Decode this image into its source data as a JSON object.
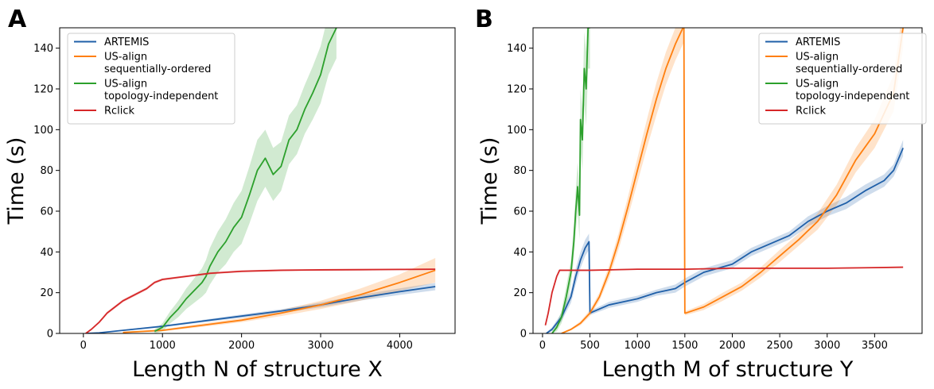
{
  "chart_data": [
    {
      "panel": "A",
      "type": "line",
      "xlabel": "Length N of structure X",
      "ylabel": "Time (s)",
      "xlim": [
        -300,
        4700
      ],
      "ylim": [
        0,
        150
      ],
      "xticks": [
        "0",
        "1000",
        "2000",
        "3000",
        "4000"
      ],
      "yticks": [
        "0",
        "20",
        "40",
        "60",
        "80",
        "100",
        "120",
        "140"
      ],
      "grid": false,
      "legend_position": "top-left",
      "series": [
        {
          "name": "ARTEMIS",
          "color": "#1f5fa8",
          "x": [
            30,
            200,
            500,
            1000,
            1500,
            2000,
            2500,
            3000,
            3500,
            4000,
            4450
          ],
          "y": [
            0,
            0.3,
            1.5,
            3.5,
            6,
            8.5,
            11,
            14,
            17.5,
            20.5,
            23
          ],
          "band": [
            0.2,
            0.2,
            0.3,
            0.5,
            0.6,
            0.8,
            0.9,
            1.2,
            1.4,
            1.6,
            1.8
          ]
        },
        {
          "name": "US-align\nsequentially-ordered",
          "color": "#ff7f0e",
          "x": [
            500,
            1000,
            1500,
            2000,
            2500,
            3000,
            3500,
            4000,
            4450
          ],
          "y": [
            0.5,
            1.5,
            4,
            6.5,
            10,
            14,
            19,
            25,
            31
          ],
          "band": [
            0.3,
            0.5,
            0.8,
            1,
            1.5,
            2,
            3,
            4,
            6
          ]
        },
        {
          "name": "US-align\ntopology-independent",
          "color": "#2ca02c",
          "x": [
            900,
            1000,
            1100,
            1200,
            1300,
            1400,
            1500,
            1550,
            1600,
            1700,
            1800,
            1900,
            2000,
            2100,
            2200,
            2300,
            2400,
            2500,
            2600,
            2700,
            2800,
            2900,
            3000,
            3100,
            3200
          ],
          "y": [
            1,
            3,
            8,
            12,
            17,
            21,
            25,
            28,
            33,
            40,
            45,
            52,
            57,
            68,
            80,
            86,
            78,
            82,
            95,
            100,
            110,
            118,
            127,
            142,
            150
          ],
          "band": [
            1,
            2,
            3,
            4,
            5,
            6,
            7,
            8,
            9,
            10,
            11,
            12,
            13,
            14,
            15,
            14,
            13,
            12,
            12,
            12,
            12,
            13,
            14,
            15,
            15
          ]
        },
        {
          "name": "Rclick",
          "color": "#d62728",
          "x": [
            30,
            100,
            200,
            300,
            400,
            500,
            600,
            700,
            800,
            900,
            1000,
            1200,
            1400,
            1600,
            1800,
            2000,
            2500,
            3000,
            3500,
            4000,
            4450
          ],
          "y": [
            0,
            2,
            5.5,
            10,
            13,
            16,
            18,
            20,
            22,
            25,
            26.5,
            27.5,
            28.5,
            29.5,
            30,
            30.5,
            31,
            31.2,
            31.3,
            31.4,
            31.5
          ],
          "band": [
            0.3,
            0.5,
            0.6,
            0.7,
            0.7,
            0.7,
            0.7,
            0.7,
            0.7,
            0.7,
            0.6,
            0.5,
            0.5,
            0.5,
            0.5,
            0.5,
            0.4,
            0.4,
            0.4,
            0.4,
            0.4
          ]
        }
      ]
    },
    {
      "panel": "B",
      "type": "line",
      "xlabel": "Length M of structure Y",
      "ylabel": "Time (s)",
      "xlim": [
        -100,
        4000
      ],
      "ylim": [
        0,
        150
      ],
      "xticks": [
        "0",
        "500",
        "1000",
        "1500",
        "2000",
        "2500",
        "3000",
        "3500"
      ],
      "yticks": [
        "0",
        "20",
        "40",
        "60",
        "80",
        "100",
        "120",
        "140"
      ],
      "grid": false,
      "legend_position": "top-right",
      "series": [
        {
          "name": "ARTEMIS",
          "color": "#1f5fa8",
          "x": [
            40,
            100,
            200,
            300,
            350,
            400,
            450,
            490,
            500,
            700,
            1000,
            1200,
            1400,
            1500,
            1700,
            2000,
            2200,
            2400,
            2600,
            2800,
            3000,
            3200,
            3400,
            3600,
            3700,
            3800
          ],
          "y": [
            0,
            2,
            8,
            18,
            28,
            36,
            42,
            45,
            10,
            14,
            17,
            20,
            22,
            25,
            30,
            34,
            40,
            44,
            48,
            55,
            60,
            64,
            70,
            75,
            80,
            91
          ],
          "band": [
            0.5,
            1,
            2,
            3,
            4,
            4,
            4,
            4,
            1,
            1.5,
            1.5,
            1.5,
            2,
            2,
            2,
            2,
            2,
            2,
            2,
            2.5,
            2.5,
            3,
            3,
            3,
            3,
            4
          ]
        },
        {
          "name": "US-align\nsequentially-ordered",
          "color": "#ff7f0e",
          "x": [
            200,
            300,
            400,
            500,
            600,
            700,
            800,
            900,
            1000,
            1100,
            1200,
            1300,
            1400,
            1480,
            1490,
            1500,
            1510,
            1700,
            1900,
            2100,
            2300,
            2500,
            2700,
            2900,
            3100,
            3300,
            3500,
            3700,
            3800
          ],
          "y": [
            0,
            2,
            5,
            10,
            18,
            30,
            45,
            62,
            80,
            98,
            115,
            130,
            142,
            150,
            150,
            10,
            10,
            13,
            18,
            23,
            30,
            38,
            46,
            55,
            68,
            85,
            98,
            118,
            150
          ],
          "band": [
            0.3,
            0.5,
            1,
            1.5,
            2,
            3,
            4,
            5,
            6,
            7,
            8,
            8,
            8,
            8,
            8,
            1,
            1,
            1.5,
            2,
            2,
            2.5,
            3,
            3,
            4,
            5,
            6,
            7,
            9,
            10
          ]
        },
        {
          "name": "US-align\ntopology-independent",
          "color": "#2ca02c",
          "x": [
            100,
            150,
            200,
            250,
            300,
            330,
            350,
            370,
            390,
            400,
            420,
            440,
            460,
            480,
            500
          ],
          "y": [
            0,
            3,
            8,
            18,
            30,
            45,
            60,
            72,
            58,
            105,
            95,
            130,
            120,
            150,
            150
          ],
          "band": [
            1,
            2,
            3,
            5,
            6,
            8,
            10,
            12,
            12,
            15,
            15,
            18,
            18,
            20,
            20
          ]
        },
        {
          "name": "Rclick",
          "color": "#d62728",
          "x": [
            30,
            60,
            100,
            150,
            180,
            250,
            500,
            1000,
            1500,
            2000,
            2500,
            3000,
            3500,
            3800
          ],
          "y": [
            4,
            10,
            20,
            28,
            31,
            31,
            31,
            31.5,
            31.5,
            32,
            32,
            32,
            32.3,
            32.5
          ],
          "band": [
            1,
            1,
            1,
            0.5,
            0.4,
            0.3,
            0.3,
            0.3,
            0.3,
            0.3,
            0.3,
            0.3,
            0.3,
            0.3
          ]
        }
      ]
    }
  ]
}
